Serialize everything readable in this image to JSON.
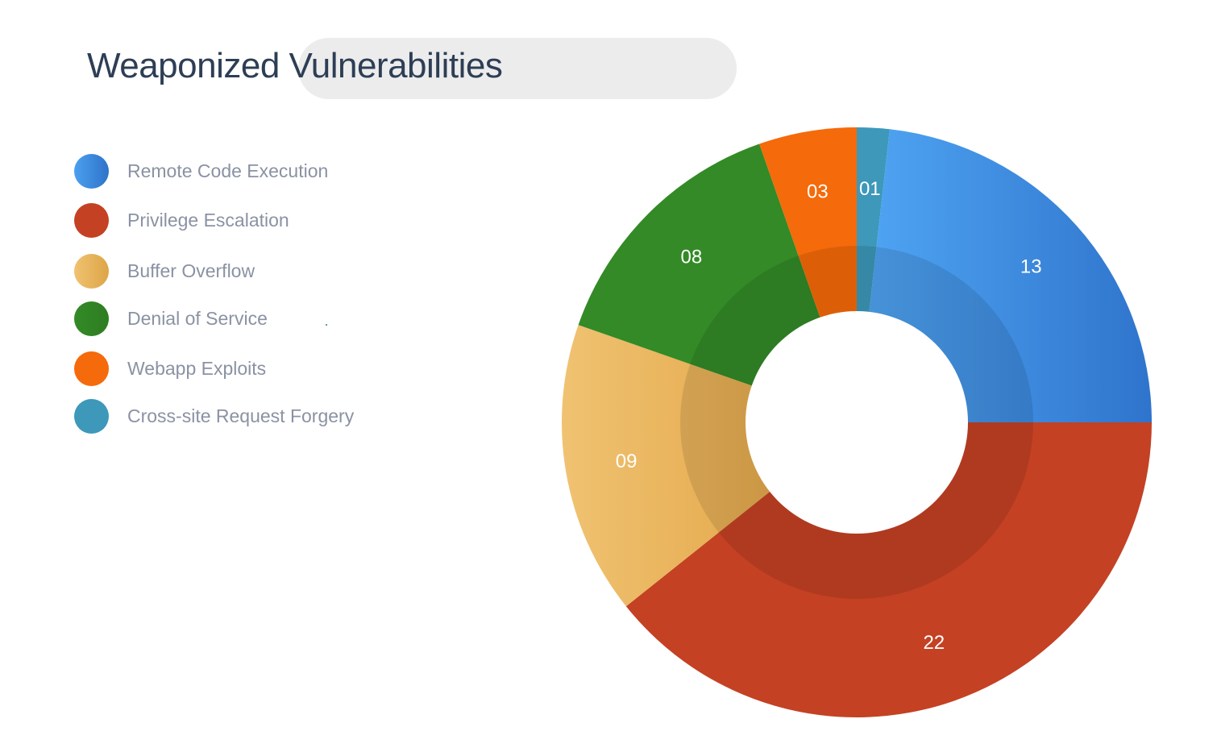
{
  "chart_data": {
    "type": "pie",
    "title": "Weaponized Vulnerabilities",
    "legend_position": "left",
    "categories": [
      "Cross-site Request Forgery",
      "Remote Code Execution",
      "Privilege Escalation",
      "Buffer Overflow",
      "Denial of Service",
      "Webapp Exploits"
    ],
    "values": [
      1,
      13,
      22,
      9,
      8,
      3
    ],
    "labels": [
      "01",
      "13",
      "22",
      "09",
      "08",
      "03"
    ],
    "colors": [
      "#3d98ba",
      "#3a86d8",
      "#c44124",
      "#e6b05a",
      "#338a26",
      "#f56a0a"
    ]
  },
  "legend": {
    "items": [
      {
        "label": "Remote Code Execution",
        "color_from": "#4ba0ef",
        "color_to": "#2f73c9"
      },
      {
        "label": "Privilege Escalation",
        "color_from": "#c44124",
        "color_to": "#c44124"
      },
      {
        "label": "Buffer Overflow",
        "color_from": "#f0c271",
        "color_to": "#dda546"
      },
      {
        "label": "Denial of Service",
        "color_from": "#338a26",
        "color_to": "#2e7d22"
      },
      {
        "label": "Webapp Exploits",
        "color_from": "#f56a0a",
        "color_to": "#f56a0a"
      },
      {
        "label": "Cross-site Request Forgery",
        "color_from": "#3d98ba",
        "color_to": "#3d98ba"
      }
    ]
  }
}
